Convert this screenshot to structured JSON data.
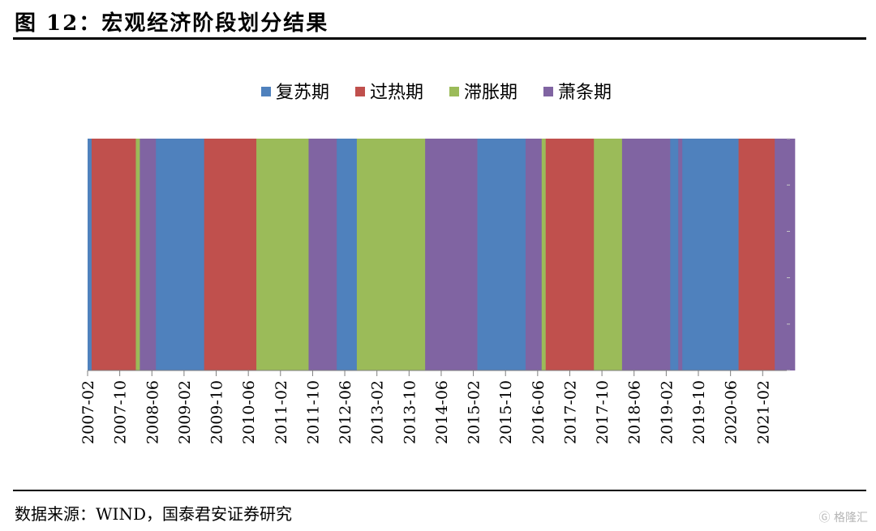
{
  "header": {
    "title": "图 12：宏观经济阶段划分结果"
  },
  "footer": {
    "source": "数据来源：WIND，国泰君安证券研究"
  },
  "watermark": {
    "text": "格隆汇"
  },
  "chart_data": {
    "type": "bar",
    "title": "",
    "xlabel": "",
    "ylabel": "",
    "legend_position": "top-center",
    "grid": false,
    "series": [
      {
        "name": "复苏期",
        "color": "#4F81BD"
      },
      {
        "name": "过热期",
        "color": "#C0504D"
      },
      {
        "name": "滞胀期",
        "color": "#9BBB59"
      },
      {
        "name": "萧条期",
        "color": "#8064A2"
      }
    ],
    "x_tick_labels": [
      "2007-02",
      "2007-10",
      "2008-06",
      "2009-02",
      "2009-10",
      "2010-06",
      "2011-02",
      "2011-10",
      "2012-06",
      "2013-02",
      "2013-10",
      "2014-06",
      "2015-02",
      "2015-10",
      "2016-06",
      "2017-02",
      "2017-10",
      "2018-06",
      "2019-02",
      "2019-10",
      "2020-06",
      "2021-02"
    ],
    "x_range": [
      "2007-02",
      "2021-08"
    ],
    "segments": [
      {
        "start": "2007-02",
        "end": "2007-03",
        "phase": "复苏期"
      },
      {
        "start": "2007-03",
        "end": "2008-02",
        "phase": "过热期"
      },
      {
        "start": "2008-02",
        "end": "2008-03",
        "phase": "滞胀期"
      },
      {
        "start": "2008-03",
        "end": "2008-07",
        "phase": "萧条期"
      },
      {
        "start": "2008-07",
        "end": "2009-07",
        "phase": "复苏期"
      },
      {
        "start": "2009-07",
        "end": "2010-08",
        "phase": "过热期"
      },
      {
        "start": "2010-08",
        "end": "2011-09",
        "phase": "滞胀期"
      },
      {
        "start": "2011-09",
        "end": "2012-04",
        "phase": "萧条期"
      },
      {
        "start": "2012-04",
        "end": "2012-09",
        "phase": "复苏期"
      },
      {
        "start": "2012-09",
        "end": "2014-02",
        "phase": "滞胀期"
      },
      {
        "start": "2014-02",
        "end": "2015-03",
        "phase": "萧条期"
      },
      {
        "start": "2015-03",
        "end": "2016-03",
        "phase": "复苏期"
      },
      {
        "start": "2016-03",
        "end": "2016-07",
        "phase": "萧条期"
      },
      {
        "start": "2016-07",
        "end": "2016-08",
        "phase": "滞胀期"
      },
      {
        "start": "2016-08",
        "end": "2017-08",
        "phase": "过热期"
      },
      {
        "start": "2017-08",
        "end": "2018-03",
        "phase": "滞胀期"
      },
      {
        "start": "2018-03",
        "end": "2019-03",
        "phase": "萧条期"
      },
      {
        "start": "2019-03",
        "end": "2019-05",
        "phase": "复苏期"
      },
      {
        "start": "2019-05",
        "end": "2019-06",
        "phase": "萧条期"
      },
      {
        "start": "2019-06",
        "end": "2020-08",
        "phase": "复苏期"
      },
      {
        "start": "2020-08",
        "end": "2021-05",
        "phase": "过热期"
      },
      {
        "start": "2021-05",
        "end": "2021-10",
        "phase": "萧条期"
      }
    ]
  }
}
